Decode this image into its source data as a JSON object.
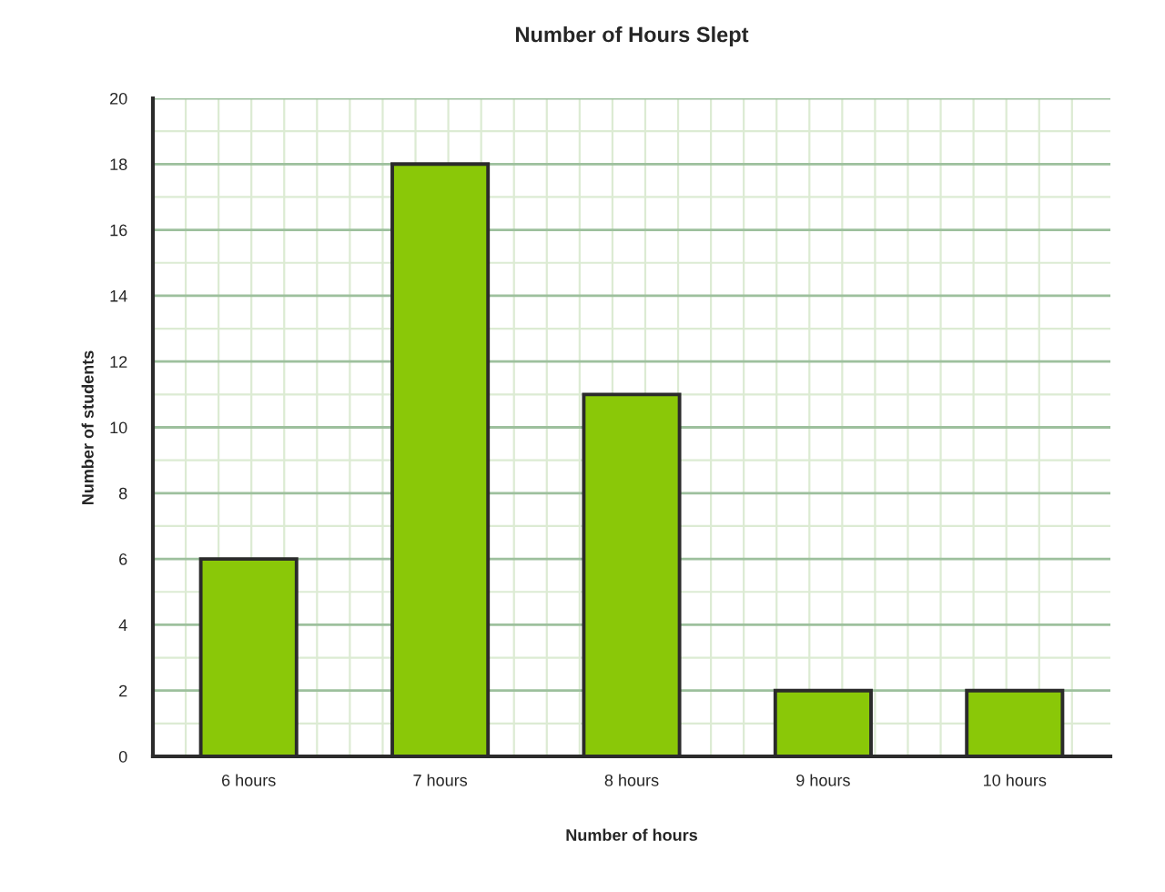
{
  "chart_data": {
    "type": "bar",
    "title": "Number of Hours Slept",
    "xlabel": "Number of hours",
    "ylabel": "Number of students",
    "categories": [
      "6 hours",
      "7 hours",
      "8 hours",
      "9 hours",
      "10 hours"
    ],
    "values": [
      6,
      18,
      11,
      2,
      2
    ],
    "color": "#8ac808",
    "ylim": [
      0,
      20
    ],
    "yticks": [
      0,
      2,
      4,
      6,
      8,
      10,
      12,
      14,
      16,
      18,
      20
    ],
    "grid": true
  }
}
